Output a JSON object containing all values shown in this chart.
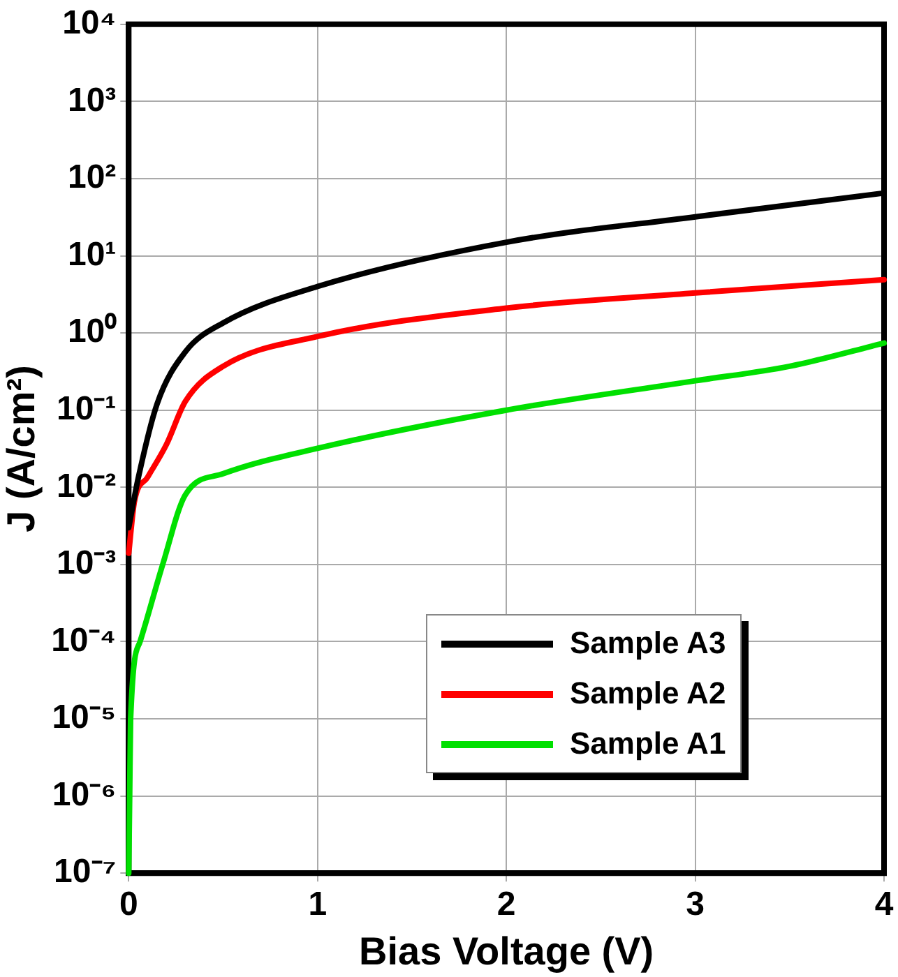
{
  "chart_data": {
    "type": "line",
    "xlabel": "Bias Voltage (V)",
    "ylabel": "J (A/cm²)",
    "log": "y",
    "xlim": [
      0,
      4
    ],
    "xticks": [
      0,
      1,
      2,
      3,
      4
    ],
    "ylim": [
      1e-07,
      10000
    ],
    "yticks": [
      {
        "value": 1e-07,
        "label": "10⁻⁷"
      },
      {
        "value": 1e-06,
        "label": "10⁻⁶"
      },
      {
        "value": 1e-05,
        "label": "10⁻⁵"
      },
      {
        "value": 0.0001,
        "label": "10⁻⁴"
      },
      {
        "value": 0.001,
        "label": "10⁻³"
      },
      {
        "value": 0.01,
        "label": "10⁻²"
      },
      {
        "value": 0.1,
        "label": "10⁻¹"
      },
      {
        "value": 1,
        "label": "10⁰"
      },
      {
        "value": 10,
        "label": "10¹"
      },
      {
        "value": 100,
        "label": "10²"
      },
      {
        "value": 1000,
        "label": "10³"
      },
      {
        "value": 10000,
        "label": "10⁴"
      }
    ],
    "grid": true,
    "legend": "bottom right",
    "marker": "none",
    "line_style": "solid",
    "series": [
      {
        "name": "Sample A3",
        "color": "#000000",
        "x": [
          0,
          0.05,
          0.15,
          0.3,
          0.5,
          1,
          2,
          3,
          4
        ],
        "values": [
          0.003,
          0.013,
          0.12,
          0.57,
          1.35,
          4,
          15,
          32,
          65
        ]
      },
      {
        "name": "Sample A2",
        "color": "#ff0000",
        "x": [
          0,
          0.03,
          0.1,
          0.2,
          0.3,
          0.5,
          1,
          2,
          3,
          4
        ],
        "values": [
          0.0014,
          0.0065,
          0.0135,
          0.036,
          0.13,
          0.37,
          0.9,
          2.1,
          3.3,
          4.9
        ]
      },
      {
        "name": "Sample A1",
        "color": "#00e000",
        "x": [
          0,
          0.005,
          0.01,
          0.06,
          0.18,
          0.3,
          0.5,
          1,
          2,
          3,
          3.5,
          4
        ],
        "values": [
          1e-07,
          1e-06,
          1e-05,
          0.0001,
          0.001,
          0.008,
          0.015,
          0.032,
          0.1,
          0.24,
          0.37,
          0.74
        ]
      }
    ]
  }
}
